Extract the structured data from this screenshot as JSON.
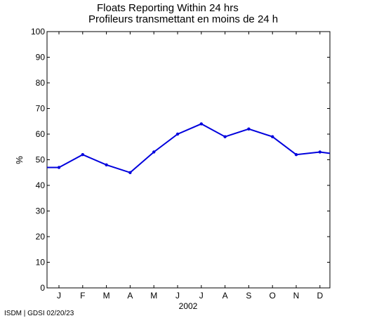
{
  "titles": {
    "line1": "Floats Reporting Within 24 hrs",
    "line2": "Profileurs transmettant en moins de 24 h"
  },
  "footer": "ISDM | GDSI 02/20/23",
  "colors": {
    "line": "#0000dd",
    "axis": "#000000",
    "background": "#ffffff"
  },
  "chart_data": {
    "type": "line",
    "title": "Floats Reporting Within 24 hrs / Profileurs transmettant en moins de 24 h",
    "xlabel": "2002",
    "ylabel": "%",
    "categories": [
      "J",
      "F",
      "M",
      "A",
      "M",
      "J",
      "J",
      "A",
      "S",
      "O",
      "N",
      "D"
    ],
    "ylim": [
      0,
      100
    ],
    "yticks": [
      0,
      10,
      20,
      30,
      40,
      50,
      60,
      70,
      80,
      90,
      100
    ],
    "grid": false,
    "series": [
      {
        "values": [
          47,
          52,
          48,
          45,
          53,
          60,
          64,
          59,
          62,
          59,
          52,
          53
        ],
        "start_value": 47,
        "end_value": 52.5
      }
    ]
  }
}
